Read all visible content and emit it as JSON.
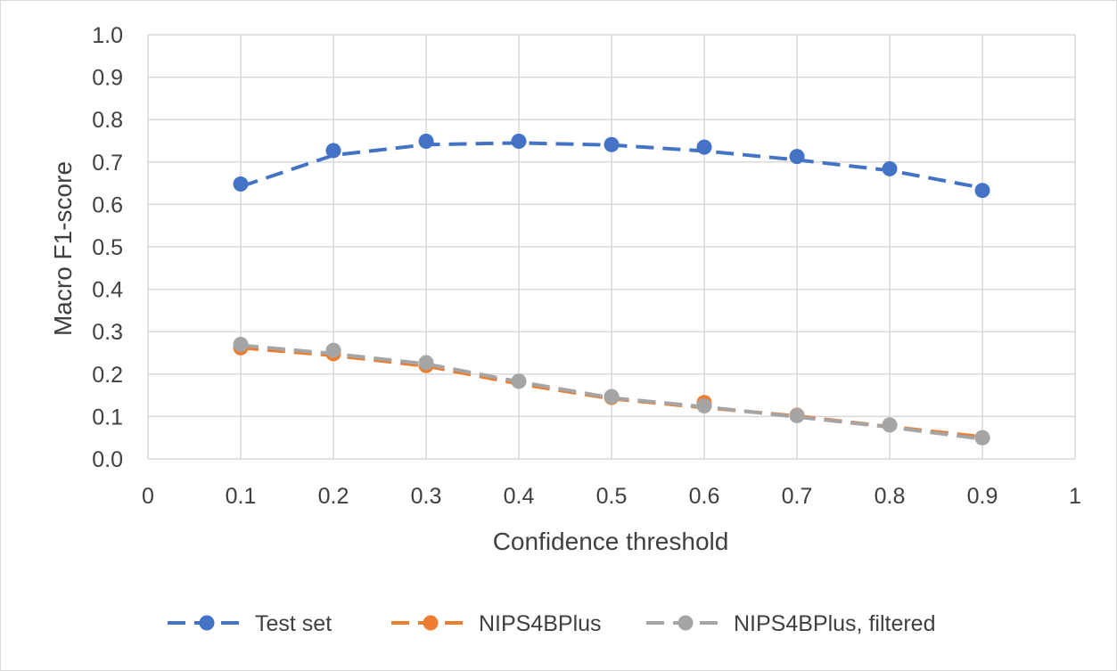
{
  "chart_data": {
    "type": "line",
    "title": "",
    "xlabel": "Confidence threshold",
    "ylabel": "Macro F1-score",
    "xlim": [
      0,
      1
    ],
    "ylim": [
      0,
      1
    ],
    "x_ticks": [
      "0",
      "0.1",
      "0.2",
      "0.3",
      "0.4",
      "0.5",
      "0.6",
      "0.7",
      "0.8",
      "0.9",
      "1"
    ],
    "y_ticks": [
      "0.0",
      "0.1",
      "0.2",
      "0.3",
      "0.4",
      "0.5",
      "0.6",
      "0.7",
      "0.8",
      "0.9",
      "1.0"
    ],
    "grid": "horizontal and vertical",
    "legend_position": "bottom",
    "x": [
      0.1,
      0.2,
      0.3,
      0.4,
      0.5,
      0.6,
      0.7,
      0.8,
      0.9
    ],
    "series": [
      {
        "name": "Test set",
        "color": "#4472c4",
        "values": [
          0.648,
          0.727,
          0.749,
          0.749,
          0.741,
          0.735,
          0.713,
          0.684,
          0.633
        ],
        "trend": [
          0.642,
          0.716,
          0.741,
          0.745,
          0.74,
          0.726,
          0.705,
          0.68,
          0.639
        ]
      },
      {
        "name": "NIPS4BPlus",
        "color": "#ed7d31",
        "values": [
          0.262,
          0.248,
          0.22,
          0.183,
          0.145,
          0.133,
          0.103,
          0.08,
          0.05
        ],
        "trend": [
          0.262,
          0.244,
          0.219,
          0.177,
          0.142,
          0.121,
          0.101,
          0.076,
          0.052
        ]
      },
      {
        "name": "NIPS4BPlus, filtered",
        "color": "#a5a5a5",
        "values": [
          0.27,
          0.256,
          0.227,
          0.183,
          0.147,
          0.125,
          0.102,
          0.08,
          0.05
        ],
        "trend": [
          0.268,
          0.248,
          0.224,
          0.182,
          0.144,
          0.123,
          0.099,
          0.075,
          0.047
        ]
      }
    ]
  }
}
